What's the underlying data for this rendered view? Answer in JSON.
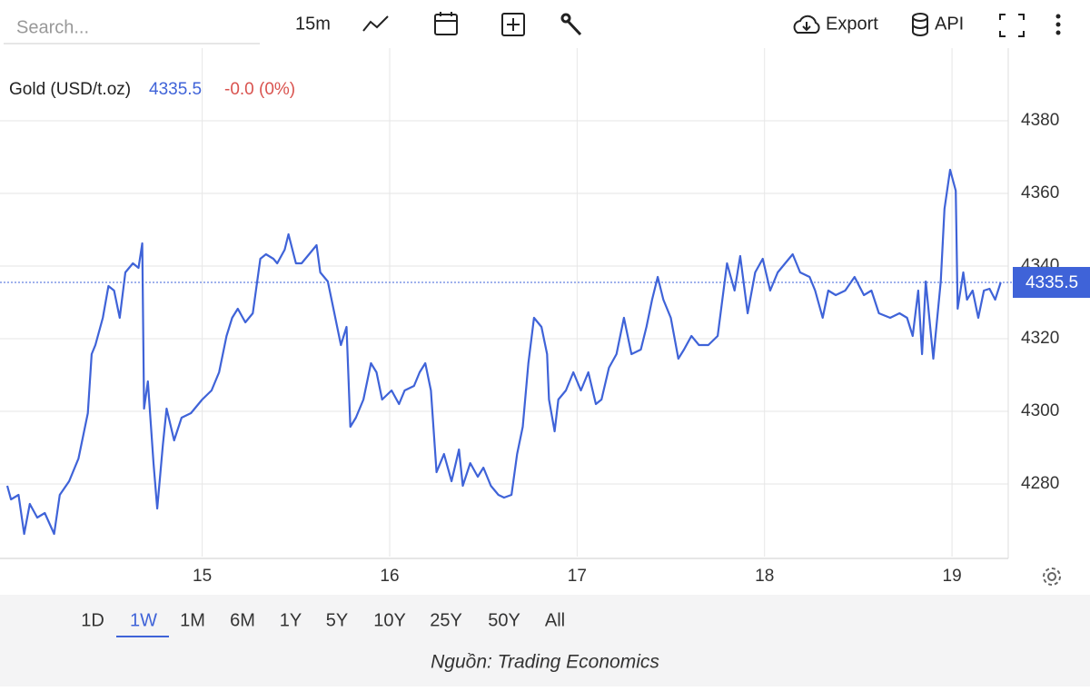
{
  "toolbar": {
    "search_placeholder": "Search...",
    "interval": "15m",
    "export": "Export",
    "api": "API"
  },
  "chart_data": {
    "type": "line",
    "change": "-0.0 (0%)",
    "x": [
      13.96,
      13.98,
      14.02,
      14.05,
      14.08,
      14.12,
      14.16,
      14.21,
      14.24,
      14.29,
      14.34,
      14.39,
      14.41,
      14.43,
      14.47,
      14.5,
      14.53,
      14.56,
      14.59,
      14.63,
      14.66,
      14.68,
      14.69,
      14.71,
      14.74,
      14.76,
      14.79,
      14.81,
      14.85,
      14.89,
      14.94,
      15.0,
      15.05,
      15.09,
      15.13,
      15.16,
      15.19,
      15.23,
      15.27,
      15.31,
      15.34,
      15.38,
      15.4,
      15.44,
      15.46,
      15.5,
      15.53,
      15.57,
      15.61,
      15.63,
      15.67,
      15.7,
      15.74,
      15.77,
      15.79,
      15.82,
      15.86,
      15.9,
      15.93,
      15.96,
      16.01,
      16.05,
      16.08,
      16.13,
      16.16,
      16.19,
      16.22,
      16.25,
      16.29,
      16.33,
      16.37,
      16.39,
      16.43,
      16.47,
      16.5,
      16.54,
      16.58,
      16.61,
      16.65,
      16.68,
      16.71,
      16.74,
      16.77,
      16.81,
      16.84,
      16.85,
      16.88,
      16.9,
      16.94,
      16.98,
      17.02,
      17.06,
      17.1,
      17.13,
      17.17,
      17.21,
      17.25,
      17.29,
      17.34,
      17.37,
      17.4,
      17.43,
      17.46,
      17.5,
      17.54,
      17.57,
      17.61,
      17.65,
      17.7,
      17.75,
      17.8,
      17.84,
      17.87,
      17.91,
      17.95,
      17.99,
      18.03,
      18.07,
      18.11,
      18.15,
      18.19,
      18.24,
      18.27,
      18.31,
      18.34,
      18.38,
      18.43,
      18.48,
      18.53,
      18.57,
      18.61,
      18.67,
      18.72,
      18.76,
      18.79,
      18.82,
      18.84,
      18.86,
      18.9,
      18.94,
      18.96,
      18.99,
      19.02,
      19.03,
      19.06,
      19.08,
      19.11,
      19.14,
      19.17,
      19.2,
      19.23,
      19.26
    ],
    "series": [
      {
        "name": "Gold (USD/t.oz)",
        "color": "#3f63d8",
        "values": [
          4279.5,
          4275.75,
          4277,
          4266.25,
          4274.5,
          4270.75,
          4272,
          4266.25,
          4277,
          4280.75,
          4287,
          4299.5,
          4315.75,
          4318.25,
          4325.75,
          4334.5,
          4333.25,
          4325.75,
          4338.25,
          4340.75,
          4339.5,
          4346.25,
          4300.75,
          4308.25,
          4285.75,
          4273.25,
          4290.75,
          4300.75,
          4292,
          4298.25,
          4299.5,
          4303.25,
          4305.75,
          4310.75,
          4320.75,
          4325.75,
          4328.25,
          4324.5,
          4327,
          4342,
          4343.25,
          4342,
          4340.75,
          4344.5,
          4348.75,
          4340.75,
          4340.75,
          4343.25,
          4345.75,
          4338.25,
          4335.75,
          4328.25,
          4318.25,
          4323.25,
          4295.75,
          4298.25,
          4303.25,
          4313.25,
          4310.75,
          4303.25,
          4305.75,
          4302,
          4305.75,
          4307,
          4310.75,
          4313.25,
          4305.75,
          4283.25,
          4288.25,
          4280.75,
          4289.5,
          4279.5,
          4285.75,
          4282,
          4284.5,
          4279.5,
          4277,
          4276.25,
          4277,
          4288.25,
          4295.75,
          4313.25,
          4325.75,
          4323.25,
          4315.75,
          4303.25,
          4294.5,
          4303.25,
          4305.75,
          4310.75,
          4305.75,
          4310.75,
          4302,
          4303.25,
          4312,
          4315.75,
          4325.75,
          4315.75,
          4317,
          4323.25,
          4330.75,
          4337,
          4330.75,
          4325.75,
          4314.5,
          4317,
          4320.75,
          4318.25,
          4318.25,
          4320.75,
          4340.75,
          4333.25,
          4342.75,
          4327,
          4338.25,
          4342,
          4333.25,
          4338.25,
          4340.75,
          4343.25,
          4338.25,
          4337,
          4333.25,
          4325.75,
          4333.25,
          4332,
          4333.25,
          4337,
          4332,
          4333.25,
          4327,
          4325.75,
          4327,
          4325.75,
          4320.75,
          4333.25,
          4315.75,
          4335.75,
          4314.5,
          4335.75,
          4355.75,
          4366.5,
          4360.75,
          4328.25,
          4338.25,
          4330.75,
          4333.25,
          4325.75,
          4333.25,
          4333.75,
          4330.75,
          4335.5
        ]
      }
    ],
    "xlim": [
      13.96,
      19.3
    ],
    "xticks": [
      15,
      16,
      17,
      18,
      19
    ],
    "ylim": [
      4260,
      4400
    ],
    "yticks": [
      4280,
      4300,
      4320,
      4340,
      4360,
      4380
    ],
    "grid": true
  },
  "ranges": [
    "1D",
    "1W",
    "1M",
    "6M",
    "1Y",
    "5Y",
    "10Y",
    "25Y",
    "50Y",
    "All"
  ],
  "active_range": 1,
  "source": "Nguồn: Trading Economics"
}
